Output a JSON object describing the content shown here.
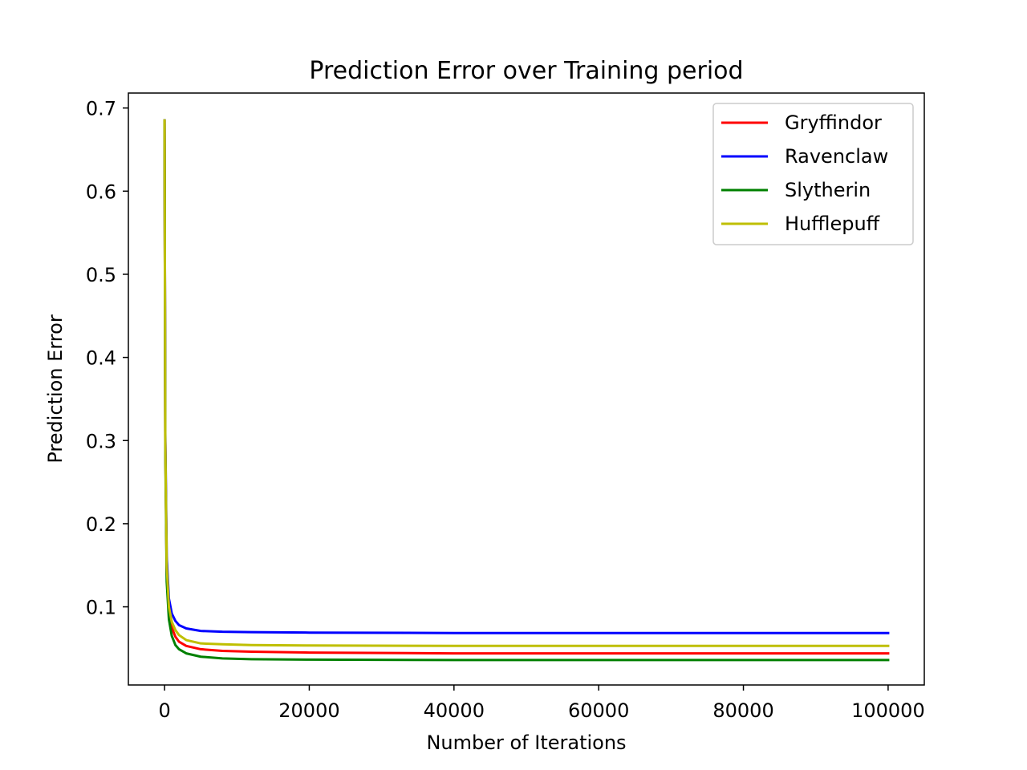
{
  "chart_data": {
    "type": "line",
    "title": "Prediction Error over Training period",
    "xlabel": "Number of Iterations",
    "ylabel": "Prediction Error",
    "xlim": [
      -5000,
      105000
    ],
    "ylim": [
      0.006,
      0.718
    ],
    "xticks": [
      0,
      20000,
      40000,
      60000,
      80000,
      100000
    ],
    "xtick_labels": [
      "0",
      "20000",
      "40000",
      "60000",
      "80000",
      "100000"
    ],
    "yticks": [
      0.1,
      0.2,
      0.3,
      0.4,
      0.5,
      0.6,
      0.7
    ],
    "ytick_labels": [
      "0.1",
      "0.2",
      "0.3",
      "0.4",
      "0.5",
      "0.6",
      "0.7"
    ],
    "grid": false,
    "legend_position": "upper right",
    "series": [
      {
        "name": "Gryffindor",
        "color": "#ff0000",
        "x": [
          0,
          100,
          300,
          600,
          1000,
          1500,
          2000,
          3000,
          5000,
          8000,
          12000,
          20000,
          40000,
          70000,
          100000
        ],
        "y": [
          0.685,
          0.3,
          0.14,
          0.095,
          0.075,
          0.064,
          0.058,
          0.053,
          0.049,
          0.047,
          0.046,
          0.045,
          0.044,
          0.044,
          0.044
        ]
      },
      {
        "name": "Ravenclaw",
        "color": "#0000ff",
        "x": [
          0,
          100,
          300,
          600,
          1000,
          1500,
          2000,
          3000,
          5000,
          8000,
          12000,
          20000,
          40000,
          70000,
          100000
        ],
        "y": [
          0.685,
          0.31,
          0.16,
          0.11,
          0.092,
          0.083,
          0.078,
          0.074,
          0.071,
          0.07,
          0.0695,
          0.069,
          0.0685,
          0.0685,
          0.0685
        ]
      },
      {
        "name": "Slytherin",
        "color": "#008000",
        "x": [
          0,
          100,
          300,
          600,
          1000,
          1500,
          2000,
          3000,
          5000,
          8000,
          12000,
          20000,
          40000,
          70000,
          100000
        ],
        "y": [
          0.685,
          0.29,
          0.13,
          0.085,
          0.065,
          0.054,
          0.049,
          0.044,
          0.04,
          0.038,
          0.037,
          0.0365,
          0.036,
          0.036,
          0.036
        ]
      },
      {
        "name": "Hufflepuff",
        "color": "#bfbf00",
        "x": [
          0,
          100,
          300,
          600,
          1000,
          1500,
          2000,
          3000,
          5000,
          8000,
          12000,
          20000,
          40000,
          70000,
          100000
        ],
        "y": [
          0.685,
          0.3,
          0.15,
          0.1,
          0.082,
          0.072,
          0.066,
          0.06,
          0.056,
          0.055,
          0.054,
          0.0535,
          0.053,
          0.053,
          0.053
        ]
      }
    ]
  }
}
